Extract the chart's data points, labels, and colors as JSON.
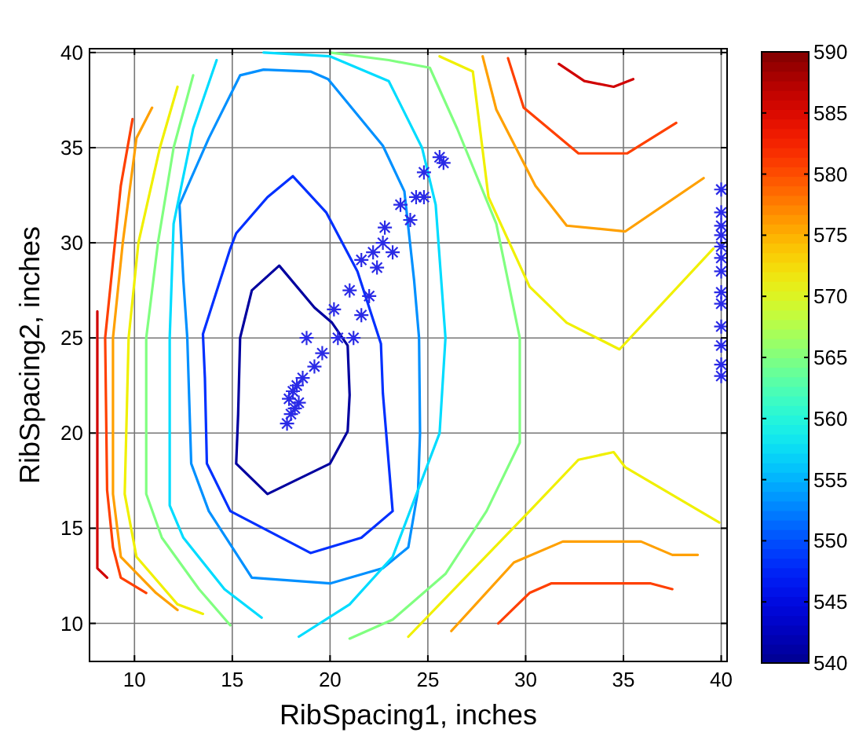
{
  "chart_data": {
    "type": "line",
    "xlabel": "RibSpacing1, inches",
    "ylabel": "RibSpacing2, inches",
    "xlim": [
      7.7,
      40.3
    ],
    "ylim": [
      8,
      40.2
    ],
    "xticks": [
      10,
      15,
      20,
      25,
      30,
      35,
      40
    ],
    "yticks": [
      10,
      15,
      20,
      25,
      30,
      35,
      40
    ],
    "grid": true,
    "marker": "none",
    "line_style": "solid",
    "clim": [
      540,
      590
    ],
    "cticks": [
      540,
      545,
      550,
      555,
      560,
      565,
      570,
      575,
      580,
      585,
      590
    ],
    "series": [
      {
        "color": "#00009f",
        "x": [
          15.2,
          15.3,
          15.4,
          16,
          17.4,
          19.2,
          20.1,
          20.9,
          21,
          null,
          15.2,
          16.8,
          20,
          20.9,
          21
        ],
        "values": [
          18.4,
          21,
          25,
          27.5,
          28.8,
          26.6,
          25.8,
          24.6,
          22,
          null,
          18.4,
          16.8,
          18.4,
          20.1,
          22
        ]
      },
      {
        "color": "#0030ff",
        "x": [
          13.5,
          14.9,
          15.2,
          16.8,
          18.1,
          19.8,
          21.4,
          22.6,
          22.7,
          23.2,
          null,
          13.5,
          13.6,
          13.7,
          14.9,
          19,
          21.6,
          23.2
        ],
        "values": [
          25.2,
          29.7,
          30.5,
          32.4,
          33.5,
          31.6,
          28.5,
          24.7,
          22.1,
          15.9,
          null,
          25.2,
          22.9,
          18.4,
          15.9,
          13.7,
          14.5,
          15.9
        ]
      },
      {
        "color": "#0090ff",
        "x": [
          12.3,
          13.8,
          15.4,
          16.6,
          19,
          19.9,
          22.7,
          23.8,
          24.3,
          24.55,
          24.6,
          null,
          12.3,
          12.5,
          12.7,
          12.9,
          13.8,
          16,
          20,
          22.7,
          24,
          24.5,
          24.6
        ],
        "values": [
          32,
          35.5,
          38.8,
          39.1,
          39,
          38.6,
          35.1,
          32.7,
          28,
          25,
          20,
          null,
          32,
          28,
          25,
          18.4,
          15.9,
          12.4,
          12.1,
          12.9,
          14,
          17,
          20
        ]
      },
      {
        "color": "#00dcff",
        "x": [
          14.2,
          13,
          12,
          11.8,
          11.8,
          12.5,
          14.6,
          16.5,
          null,
          18.4,
          21,
          23.2,
          25.6,
          25.9,
          25.4,
          24.7,
          23,
          20,
          16.6
        ],
        "values": [
          39.6,
          36,
          31,
          25,
          16.2,
          14.5,
          11.8,
          10.3,
          null,
          9.3,
          11,
          13.5,
          20,
          25,
          32,
          35,
          38.5,
          39.8,
          40
        ]
      },
      {
        "color": "#80ff80",
        "x": [
          13,
          12,
          11.2,
          10.6,
          10.6,
          11.4,
          13.3,
          14.9,
          null,
          21,
          23.2,
          25.9,
          28,
          29.7,
          29.7,
          28.5,
          26.5,
          25.1,
          23,
          20
        ],
        "values": [
          38.8,
          35,
          30,
          25,
          16.8,
          14.5,
          11.8,
          9.9,
          null,
          9.2,
          10.2,
          12.6,
          15.9,
          19.5,
          25,
          31,
          36,
          39.2,
          39.6,
          40
        ]
      },
      {
        "color": "#f0f000",
        "x": [
          12.2,
          11.3,
          10.2,
          9.7,
          9.5,
          10.1,
          12.2,
          13.5,
          null,
          25.6,
          27.3,
          28.1,
          30.2,
          32.1,
          34.8,
          39.6,
          null,
          24,
          30.2,
          32.7,
          34.5,
          35.1,
          39.9
        ],
        "values": [
          38.2,
          35,
          30,
          25,
          16.8,
          13.5,
          11,
          10.5,
          null,
          39.8,
          39,
          32.4,
          27.7,
          25.8,
          24.4,
          29.7,
          null,
          9.3,
          15.9,
          18.6,
          19,
          18.2,
          15.3
        ]
      },
      {
        "color": "#ffa000",
        "x": [
          10.9,
          10.1,
          9.4,
          8.9,
          8.9,
          9.3,
          11.1,
          12.2,
          null,
          27.8,
          28.5,
          30.5,
          32.1,
          35.1,
          39.1,
          null,
          26.2,
          29.4,
          31.9,
          35.9,
          37.5,
          38.8
        ],
        "values": [
          37.1,
          35.5,
          30,
          25,
          16.8,
          13.5,
          11.6,
          10.7,
          null,
          39.8,
          37,
          33,
          30.9,
          30.6,
          33.4,
          null,
          9.6,
          13.2,
          14.3,
          14.3,
          13.6,
          13.6
        ]
      },
      {
        "color": "#ff4000",
        "x": [
          9.9,
          9.3,
          8.8,
          8.5,
          8.6,
          8.9,
          9.3,
          10.6,
          null,
          29.1,
          29.9,
          32.7,
          35.2,
          37.7,
          null,
          28.6,
          30.2,
          31.3,
          36.4,
          37.5
        ],
        "values": [
          36.5,
          33,
          28,
          25,
          17,
          14,
          12.4,
          11.6,
          null,
          39.7,
          37.1,
          34.7,
          34.7,
          36.3,
          null,
          10,
          11.6,
          12.1,
          12.1,
          11.8
        ]
      },
      {
        "color": "#d00000",
        "x": [
          8.1,
          8.1,
          8.1,
          8.6,
          null,
          31.7,
          33,
          34.5,
          35.5
        ],
        "values": [
          26.4,
          20,
          12.9,
          12.4,
          null,
          39.4,
          38.5,
          38.2,
          38.6
        ]
      },
      {
        "type": "scatter",
        "color": "#2a2ae6",
        "marker": "cross",
        "x": [
          17.8,
          18,
          18.2,
          18.4,
          17.9,
          18.1,
          18.3,
          18.6,
          18.8,
          19.6,
          20.4,
          21.2,
          21.6,
          22,
          22.4,
          22.2,
          22.8,
          23.6,
          24.4,
          24.8,
          25.6,
          25.8,
          23.2,
          22.7,
          21.6,
          24.1,
          24.8,
          21,
          20.2,
          19.2,
          40,
          40,
          40,
          40,
          40,
          40,
          40,
          40,
          40,
          40,
          40,
          40,
          40
        ],
        "values": [
          20.5,
          21,
          21.3,
          21.6,
          21.8,
          22.2,
          22.5,
          22.9,
          25,
          24.2,
          25,
          25,
          26.2,
          27.2,
          28.7,
          29.5,
          30.8,
          32,
          32.4,
          33.7,
          34.5,
          34.2,
          29.5,
          30,
          29.1,
          31.2,
          32.4,
          27.5,
          26.5,
          23.5,
          23,
          23.6,
          24.6,
          25.6,
          26.8,
          27.4,
          28.5,
          29.2,
          29.8,
          30.4,
          30.9,
          31.6,
          32.8
        ]
      }
    ]
  }
}
